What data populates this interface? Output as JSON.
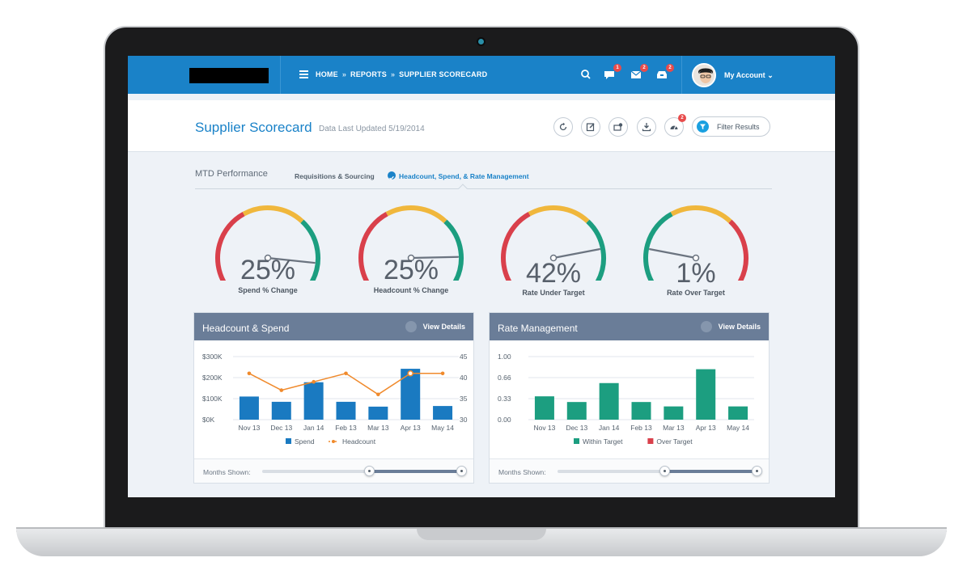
{
  "topbar": {
    "breadcrumbs": [
      "HOME",
      "REPORTS",
      "SUPPLIER SCORECARD"
    ],
    "breadcrumb_sep": "»",
    "badges": {
      "chat": "1",
      "mail": "2",
      "inbox": "2"
    },
    "account_label": "My Account"
  },
  "header": {
    "title": "Supplier Scorecard",
    "updated": "Data Last Updated 5/19/2014",
    "filter_label": "Filter Results",
    "alert_badge": "2"
  },
  "tabs": {
    "section": "MTD Performance",
    "items": [
      "Requisitions & Sourcing",
      "Headcount, Spend, & Rate Management"
    ],
    "active": 1
  },
  "gauges": [
    {
      "value": "25%",
      "label": "Spend % Change",
      "fraction": 0.9,
      "colors": [
        "#d9404b",
        "#f0b73c",
        "#1c9e80"
      ]
    },
    {
      "value": "25%",
      "label": "Headcount % Change",
      "fraction": 0.87,
      "colors": [
        "#d9404b",
        "#f0b73c",
        "#1c9e80"
      ]
    },
    {
      "value": "42%",
      "label": "Rate Under Target",
      "fraction": 0.83,
      "colors": [
        "#d9404b",
        "#f0b73c",
        "#1c9e80"
      ]
    },
    {
      "value": "1%",
      "label": "Rate Over Target",
      "fraction": 0.17,
      "colors": [
        "#1c9e80",
        "#f0b73c",
        "#d9404b"
      ]
    }
  ],
  "panels": {
    "headcount": {
      "title": "Headcount & Spend",
      "details": "View Details",
      "months_label": "Months Shown:"
    },
    "rate": {
      "title": "Rate Management",
      "details": "View Details",
      "months_label": "Months Shown:"
    }
  },
  "chart_data": [
    {
      "type": "bar",
      "categories": [
        "Nov 13",
        "Dec 13",
        "Jan 14",
        "Feb 13",
        "Mar 13",
        "Apr 13",
        "May 14"
      ],
      "series": [
        {
          "name": "Spend",
          "values": [
            110,
            85,
            178,
            85,
            62,
            242,
            65
          ],
          "color": "#1a7ac1"
        },
        {
          "name": "Headcount",
          "type": "line",
          "axis": "right",
          "values": [
            41,
            37,
            39,
            41,
            36,
            41,
            41
          ],
          "color": "#f08a2c"
        }
      ],
      "y_left": {
        "ticks": [
          "$0K",
          "$100K",
          "$200K",
          "$300K"
        ],
        "range": [
          0,
          300
        ]
      },
      "y_right": {
        "ticks": [
          "30",
          "35",
          "40",
          "45"
        ],
        "range": [
          30,
          45
        ]
      },
      "legend": "bottom",
      "grid": true
    },
    {
      "type": "bar",
      "categories": [
        "Nov 13",
        "Dec 13",
        "Jan 14",
        "Feb 13",
        "Mar 13",
        "Apr 13",
        "May 14"
      ],
      "series": [
        {
          "name": "Within Target",
          "values": [
            0.37,
            0.28,
            0.58,
            0.28,
            0.21,
            0.8,
            0.21
          ],
          "color": "#1c9e80"
        },
        {
          "name": "Over Target",
          "values": [
            0,
            0,
            0,
            0,
            0,
            0,
            0
          ],
          "color": "#d9404b"
        }
      ],
      "y_left": {
        "ticks": [
          "0.00",
          "0.33",
          "0.66",
          "1.00"
        ],
        "range": [
          0,
          1
        ]
      },
      "legend": "bottom",
      "grid": true
    }
  ]
}
